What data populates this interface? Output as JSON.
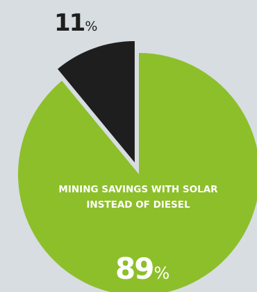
{
  "chart_data": {
    "type": "pie",
    "title_lines": [
      "MINING SAVINGS WITH SOLAR",
      "INSTEAD OF DIESEL"
    ],
    "slices": [
      {
        "value": 89,
        "label": "89",
        "unit": "%",
        "color": "#8dbf2a"
      },
      {
        "value": 11,
        "label": "11",
        "unit": "%",
        "color": "#1e1e1e",
        "exploded": true
      }
    ]
  },
  "colors": {
    "background": "#d7dde1",
    "accent": "#8dbf2a",
    "dark": "#1e1e1e"
  }
}
